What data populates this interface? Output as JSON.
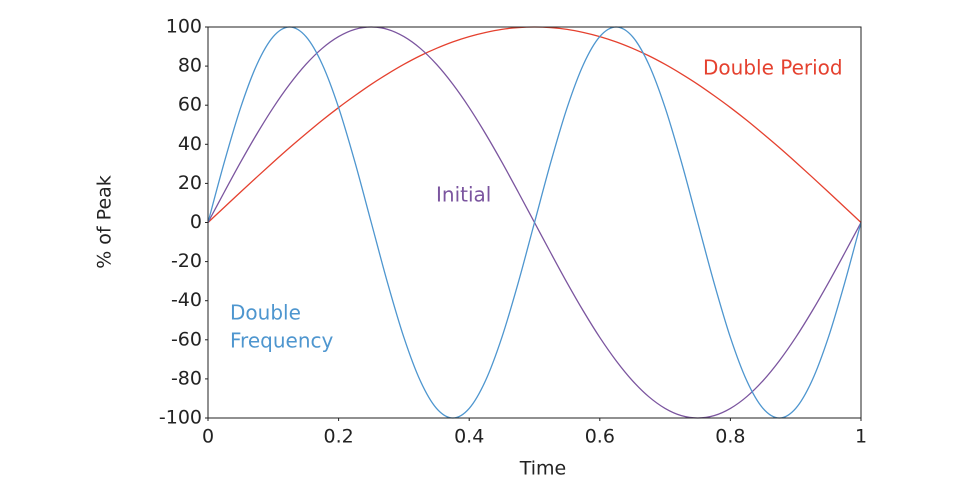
{
  "chart_data": {
    "type": "line",
    "xlabel": "Time",
    "ylabel": "% of Peak",
    "x": [
      0,
      0.025,
      0.05,
      0.075,
      0.1,
      0.125,
      0.15,
      0.175,
      0.2,
      0.225,
      0.25,
      0.275,
      0.3,
      0.325,
      0.35,
      0.375,
      0.4,
      0.425,
      0.45,
      0.475,
      0.5,
      0.525,
      0.55,
      0.575,
      0.6,
      0.625,
      0.65,
      0.675,
      0.7,
      0.725,
      0.75,
      0.775,
      0.8,
      0.825,
      0.85,
      0.875,
      0.9,
      0.925,
      0.95,
      0.975,
      1
    ],
    "series": [
      {
        "name": "Double Period",
        "color": "#e5412f",
        "values": [
          0,
          7.8,
          15.6,
          23.3,
          30.9,
          38.3,
          45.4,
          52.3,
          58.8,
          64.9,
          70.7,
          76.0,
          80.9,
          85.3,
          89.1,
          92.4,
          95.1,
          97.2,
          98.8,
          99.7,
          100,
          99.7,
          98.8,
          97.2,
          95.1,
          92.4,
          89.1,
          85.3,
          80.9,
          76.0,
          70.7,
          64.9,
          58.8,
          52.3,
          45.4,
          38.3,
          30.9,
          23.3,
          15.6,
          7.8,
          0
        ]
      },
      {
        "name": "Initial",
        "color": "#7b559f",
        "values": [
          0,
          15.6,
          30.9,
          45.4,
          58.8,
          70.7,
          80.9,
          89.1,
          95.1,
          98.8,
          100,
          98.8,
          95.1,
          89.1,
          80.9,
          70.7,
          58.8,
          45.4,
          30.9,
          15.6,
          0,
          -15.6,
          -30.9,
          -45.4,
          -58.8,
          -70.7,
          -80.9,
          -89.1,
          -95.1,
          -98.8,
          -100,
          -98.8,
          -95.1,
          -89.1,
          -80.9,
          -70.7,
          -58.8,
          -45.4,
          -30.9,
          -15.6,
          0
        ]
      },
      {
        "name": "Double Frequency",
        "color": "#4e96cf",
        "values": [
          0,
          30.9,
          58.8,
          80.9,
          95.1,
          100,
          95.1,
          80.9,
          58.8,
          30.9,
          0,
          -30.9,
          -58.8,
          -80.9,
          -95.1,
          -100,
          -95.1,
          -80.9,
          -58.8,
          -30.9,
          0,
          30.9,
          58.8,
          80.9,
          95.1,
          100,
          95.1,
          80.9,
          58.8,
          30.9,
          0,
          -30.9,
          -58.8,
          -80.9,
          -95.1,
          -100,
          -95.1,
          -80.9,
          -58.8,
          -30.9,
          0
        ]
      }
    ],
    "annotations": [
      {
        "lines": [
          "Double Period"
        ],
        "color": "#e5412f"
      },
      {
        "lines": [
          "Initial"
        ],
        "color": "#7b559f"
      },
      {
        "lines": [
          "Double",
          "Frequency"
        ],
        "color": "#4e96cf"
      }
    ],
    "xlim": [
      0,
      1
    ],
    "xticks": [
      0,
      0.2,
      0.4,
      0.6,
      0.8,
      1
    ],
    "ylim": [
      -100,
      100
    ],
    "yticks": [
      -100,
      -80,
      -60,
      -40,
      -20,
      0,
      20,
      40,
      60,
      80,
      100
    ],
    "grid": false
  }
}
